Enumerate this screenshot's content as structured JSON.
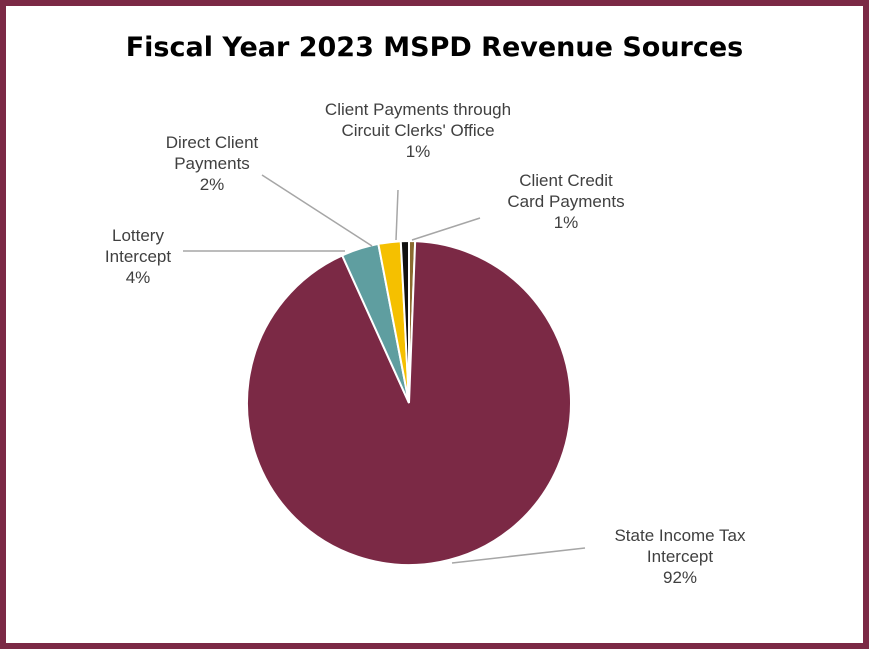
{
  "chart_data": {
    "type": "pie",
    "title": "Fiscal Year 2023 MSPD Revenue Sources",
    "start_angle": "12 o'clock",
    "direction": "clockwise",
    "slices": [
      {
        "label_lines": [
          "Client Credit",
          "Card Payments"
        ],
        "value_label": "1%",
        "value": 0.6,
        "color": "#8b6a2f"
      },
      {
        "label_lines": [
          "State Income Tax",
          "Intercept"
        ],
        "value_label": "92%",
        "value": 91.7,
        "color": "#7b2945"
      },
      {
        "label_lines": [
          "Lottery",
          "Intercept"
        ],
        "value_label": "4%",
        "value": 3.7,
        "color": "#5f9ea0"
      },
      {
        "label_lines": [
          "Direct Client",
          "Payments"
        ],
        "value_label": "2%",
        "value": 2.2,
        "color": "#f5c000"
      },
      {
        "label_lines": [
          "Client Payments through",
          "Circuit Clerks' Office"
        ],
        "value_label": "1%",
        "value": 0.8,
        "color": "#111111"
      }
    ],
    "colors": {
      "border": "#7b2945",
      "leader_line": "#a6a6a6",
      "label_text": "#404040"
    }
  }
}
